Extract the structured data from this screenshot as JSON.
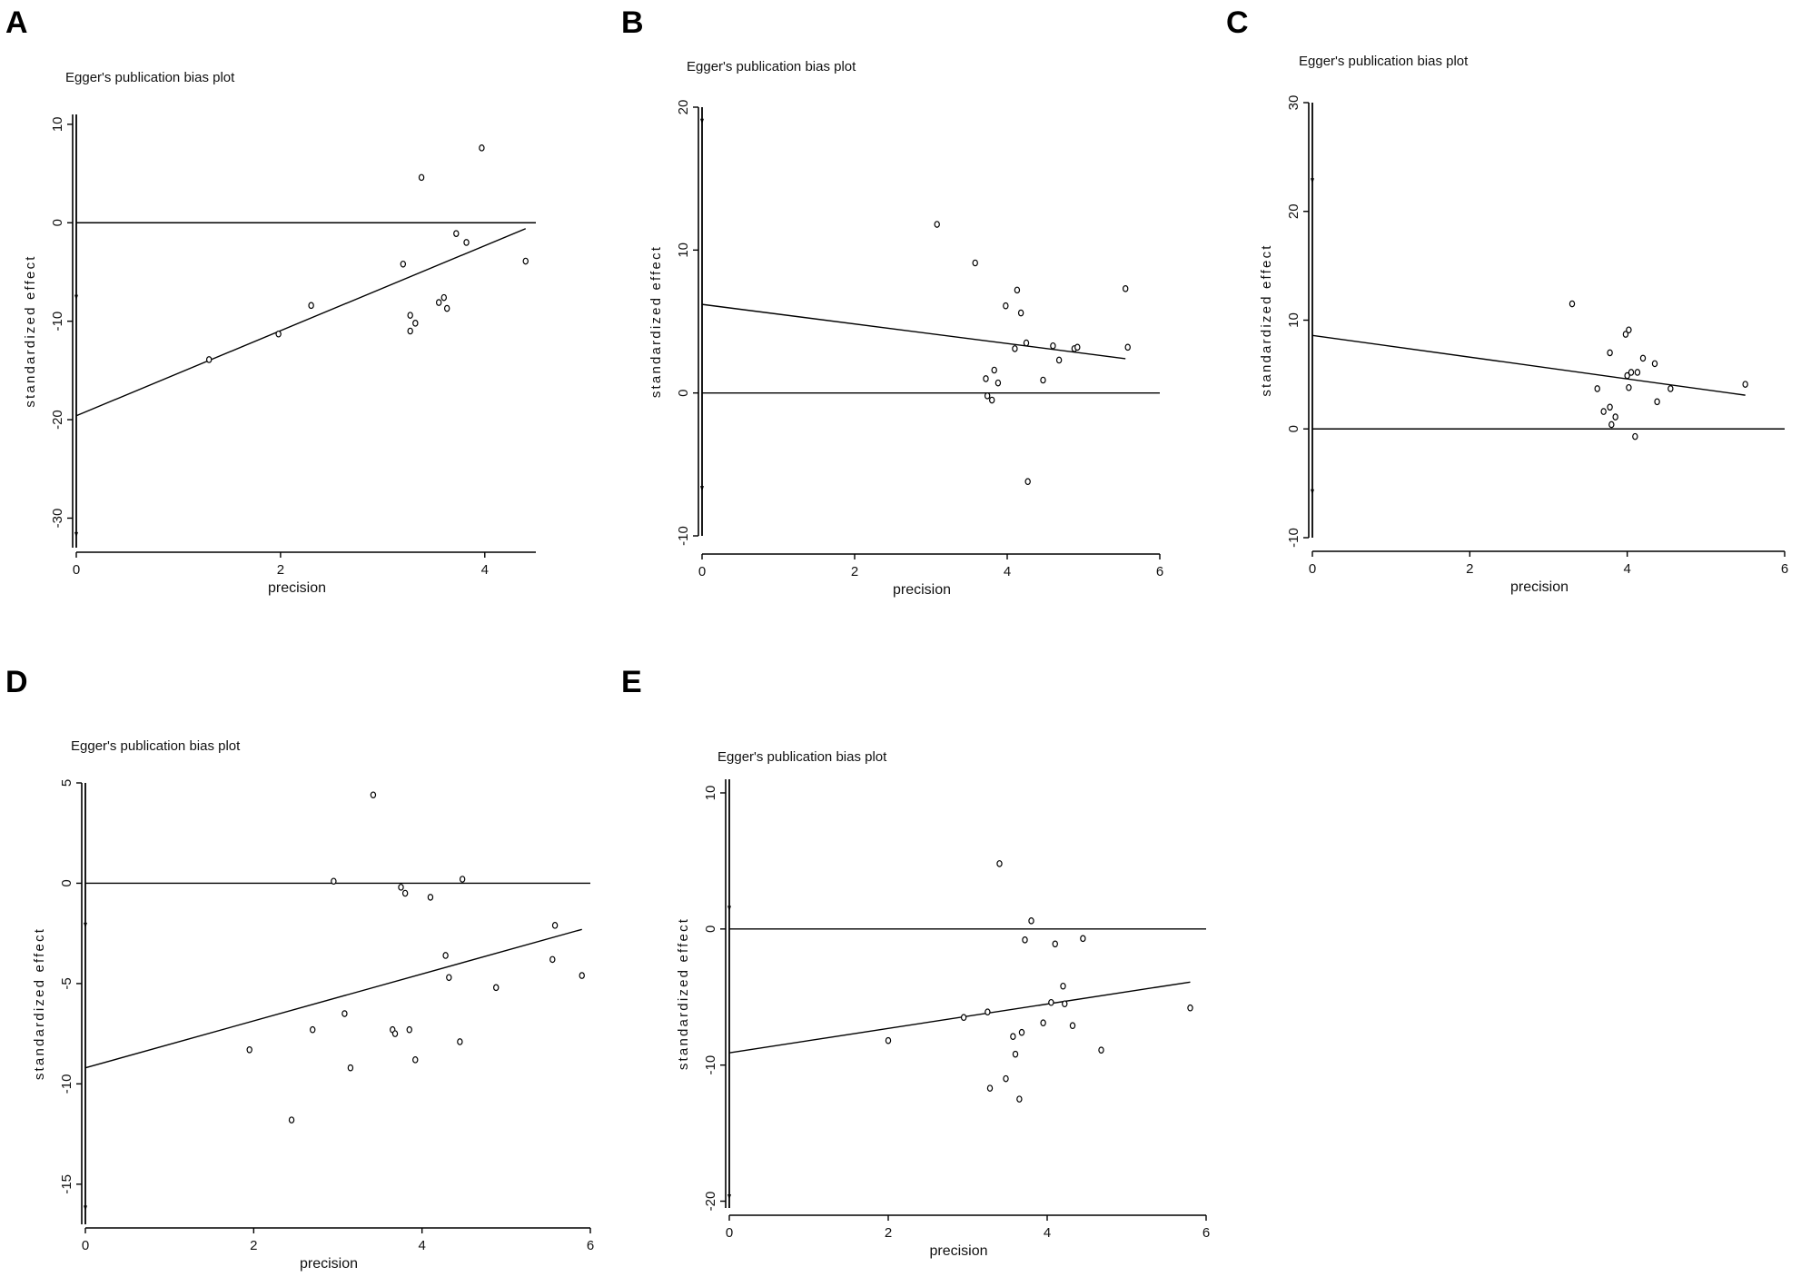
{
  "panels": [
    {
      "letter": "A",
      "chart_data": {
        "type": "scatter",
        "title": "Egger's publication bias plot",
        "xlabel": "precision",
        "ylabel": "standardized effect",
        "xlim": [
          0,
          4.5
        ],
        "ylim": [
          -33,
          11
        ],
        "xticks": [
          0,
          2,
          4
        ],
        "yticks": [
          10,
          0,
          -10,
          -20,
          -30
        ],
        "fit_line": {
          "x": [
            0,
            4.4
          ],
          "y": [
            -19.6,
            -0.6
          ]
        },
        "ci_at_zero": [
          -31.7,
          -7.6
        ],
        "points": [
          {
            "x": 1.3,
            "y": -13.9
          },
          {
            "x": 1.98,
            "y": -11.3
          },
          {
            "x": 2.3,
            "y": -8.4
          },
          {
            "x": 3.2,
            "y": -4.2
          },
          {
            "x": 3.27,
            "y": -9.4
          },
          {
            "x": 3.27,
            "y": -11.0
          },
          {
            "x": 3.32,
            "y": -10.2
          },
          {
            "x": 3.38,
            "y": 4.6
          },
          {
            "x": 3.55,
            "y": -8.1
          },
          {
            "x": 3.6,
            "y": -7.6
          },
          {
            "x": 3.63,
            "y": -8.7
          },
          {
            "x": 3.72,
            "y": -1.1
          },
          {
            "x": 3.82,
            "y": -2.0
          },
          {
            "x": 3.97,
            "y": 7.6
          },
          {
            "x": 4.4,
            "y": -3.9
          }
        ]
      }
    },
    {
      "letter": "B",
      "chart_data": {
        "type": "scatter",
        "title": "Egger's publication bias plot",
        "xlabel": "precision",
        "ylabel": "standardized effect",
        "xlim": [
          0,
          6
        ],
        "ylim": [
          -10,
          20
        ],
        "xticks": [
          0,
          2,
          4,
          6
        ],
        "yticks": [
          20,
          10,
          0,
          -10
        ],
        "fit_line": {
          "x": [
            0,
            5.55
          ],
          "y": [
            6.2,
            2.4
          ]
        },
        "ci_at_zero": [
          -6.7,
          19.0
        ],
        "points": [
          {
            "x": 3.08,
            "y": 11.8
          },
          {
            "x": 3.58,
            "y": 9.1
          },
          {
            "x": 3.72,
            "y": 1.0
          },
          {
            "x": 3.74,
            "y": -0.2
          },
          {
            "x": 3.8,
            "y": -0.5
          },
          {
            "x": 3.83,
            "y": 1.6
          },
          {
            "x": 3.88,
            "y": 0.7
          },
          {
            "x": 3.98,
            "y": 6.1
          },
          {
            "x": 4.1,
            "y": 3.1
          },
          {
            "x": 4.13,
            "y": 7.2
          },
          {
            "x": 4.18,
            "y": 5.6
          },
          {
            "x": 4.25,
            "y": 3.5
          },
          {
            "x": 4.27,
            "y": -6.2
          },
          {
            "x": 4.47,
            "y": 0.9
          },
          {
            "x": 4.6,
            "y": 3.3
          },
          {
            "x": 4.68,
            "y": 2.3
          },
          {
            "x": 4.88,
            "y": 3.1
          },
          {
            "x": 4.92,
            "y": 3.2
          },
          {
            "x": 5.55,
            "y": 7.3
          },
          {
            "x": 5.58,
            "y": 3.2
          }
        ]
      }
    },
    {
      "letter": "C",
      "chart_data": {
        "type": "scatter",
        "title": "Egger's publication bias plot",
        "xlabel": "precision",
        "ylabel": "standardized effect",
        "xlim": [
          0,
          6
        ],
        "ylim": [
          -10,
          30
        ],
        "xticks": [
          0,
          2,
          4,
          6
        ],
        "yticks": [
          30,
          20,
          10,
          0,
          -10
        ],
        "fit_line": {
          "x": [
            0,
            5.5
          ],
          "y": [
            8.6,
            3.1
          ]
        },
        "ci_at_zero": [
          -5.8,
          22.8
        ],
        "points": [
          {
            "x": 3.3,
            "y": 11.5
          },
          {
            "x": 3.62,
            "y": 3.7
          },
          {
            "x": 3.7,
            "y": 1.6
          },
          {
            "x": 3.78,
            "y": 7.0
          },
          {
            "x": 3.78,
            "y": 2.0
          },
          {
            "x": 3.8,
            "y": 0.4
          },
          {
            "x": 3.85,
            "y": 1.1
          },
          {
            "x": 3.98,
            "y": 8.7
          },
          {
            "x": 4.0,
            "y": 4.9
          },
          {
            "x": 4.02,
            "y": 9.1
          },
          {
            "x": 4.02,
            "y": 3.8
          },
          {
            "x": 4.05,
            "y": 5.2
          },
          {
            "x": 4.1,
            "y": -0.7
          },
          {
            "x": 4.13,
            "y": 5.2
          },
          {
            "x": 4.2,
            "y": 6.5
          },
          {
            "x": 4.35,
            "y": 6.0
          },
          {
            "x": 4.38,
            "y": 2.5
          },
          {
            "x": 4.55,
            "y": 3.7
          },
          {
            "x": 5.5,
            "y": 4.1
          }
        ]
      }
    },
    {
      "letter": "D",
      "chart_data": {
        "type": "scatter",
        "title": "Egger's publication bias plot",
        "xlabel": "precision",
        "ylabel": "standardized effect",
        "xlim": [
          0,
          6
        ],
        "ylim": [
          -17,
          5
        ],
        "xticks": [
          0,
          2,
          4,
          6
        ],
        "yticks": [
          5,
          0,
          -5,
          -10,
          -15
        ],
        "fit_line": {
          "x": [
            0,
            5.9
          ],
          "y": [
            -9.2,
            -2.3
          ]
        },
        "ci_at_zero": [
          -16.2,
          -2.1
        ],
        "points": [
          {
            "x": 1.95,
            "y": -8.3
          },
          {
            "x": 2.45,
            "y": -11.8
          },
          {
            "x": 2.7,
            "y": -7.3
          },
          {
            "x": 2.95,
            "y": 0.1
          },
          {
            "x": 3.08,
            "y": -6.5
          },
          {
            "x": 3.15,
            "y": -9.2
          },
          {
            "x": 3.42,
            "y": 4.4
          },
          {
            "x": 3.65,
            "y": -7.3
          },
          {
            "x": 3.68,
            "y": -7.5
          },
          {
            "x": 3.75,
            "y": -0.2
          },
          {
            "x": 3.8,
            "y": -0.5
          },
          {
            "x": 3.85,
            "y": -7.3
          },
          {
            "x": 3.92,
            "y": -8.8
          },
          {
            "x": 4.1,
            "y": -0.7
          },
          {
            "x": 4.28,
            "y": -3.6
          },
          {
            "x": 4.32,
            "y": -4.7
          },
          {
            "x": 4.45,
            "y": -7.9
          },
          {
            "x": 4.48,
            "y": 0.2
          },
          {
            "x": 4.88,
            "y": -5.2
          },
          {
            "x": 5.55,
            "y": -3.8
          },
          {
            "x": 5.58,
            "y": -2.1
          },
          {
            "x": 5.9,
            "y": -4.6
          }
        ]
      }
    },
    {
      "letter": "E",
      "chart_data": {
        "type": "scatter",
        "title": "Egger's publication bias plot",
        "xlabel": "precision",
        "ylabel": "standardized effect",
        "xlim": [
          0,
          6
        ],
        "ylim": [
          -20.5,
          11
        ],
        "xticks": [
          0,
          2,
          4,
          6
        ],
        "yticks": [
          10,
          0,
          -10,
          -20
        ],
        "fit_line": {
          "x": [
            0,
            5.8
          ],
          "y": [
            -9.1,
            -3.9
          ]
        },
        "ci_at_zero": [
          -19.7,
          1.5
        ],
        "points": [
          {
            "x": 2.0,
            "y": -8.2
          },
          {
            "x": 2.95,
            "y": -6.5
          },
          {
            "x": 3.25,
            "y": -6.1
          },
          {
            "x": 3.28,
            "y": -11.7
          },
          {
            "x": 3.4,
            "y": 4.8
          },
          {
            "x": 3.48,
            "y": -11.0
          },
          {
            "x": 3.57,
            "y": -7.9
          },
          {
            "x": 3.6,
            "y": -9.2
          },
          {
            "x": 3.65,
            "y": -12.5
          },
          {
            "x": 3.68,
            "y": -7.6
          },
          {
            "x": 3.72,
            "y": -0.8
          },
          {
            "x": 3.8,
            "y": 0.6
          },
          {
            "x": 3.95,
            "y": -6.9
          },
          {
            "x": 4.05,
            "y": -5.4
          },
          {
            "x": 4.1,
            "y": -1.1
          },
          {
            "x": 4.2,
            "y": -4.2
          },
          {
            "x": 4.22,
            "y": -5.5
          },
          {
            "x": 4.32,
            "y": -7.1
          },
          {
            "x": 4.45,
            "y": -0.7
          },
          {
            "x": 4.68,
            "y": -8.9
          },
          {
            "x": 5.8,
            "y": -5.8
          }
        ]
      }
    }
  ]
}
